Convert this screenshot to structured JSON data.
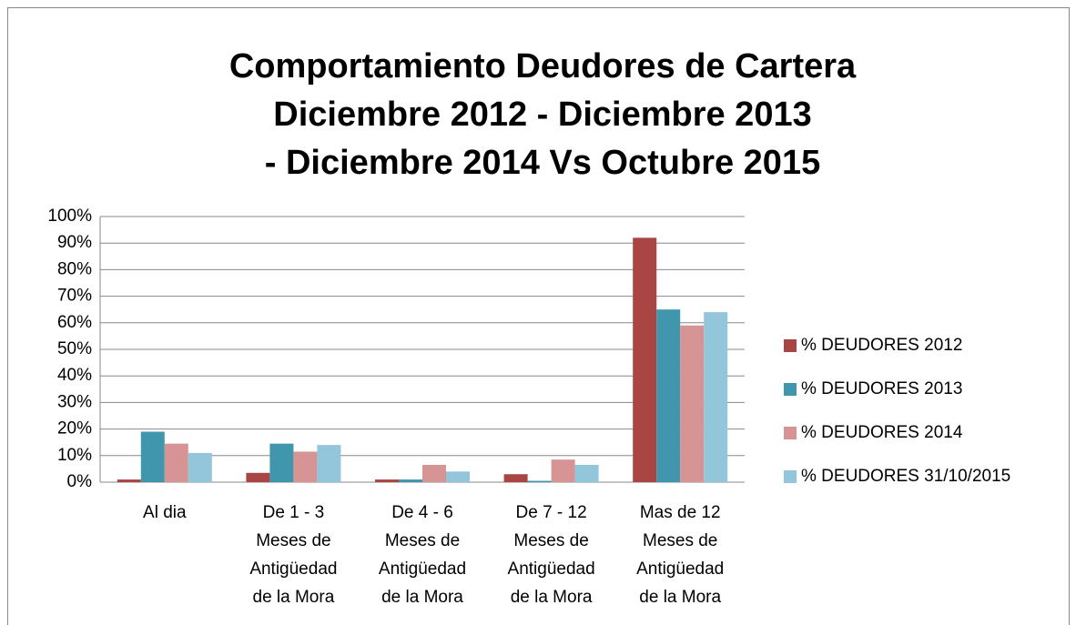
{
  "chart_data": {
    "type": "bar",
    "title": [
      "Comportamiento Deudores de Cartera",
      "Diciembre 2012 - Diciembre 2013",
      "- Diciembre 2014 Vs Octubre 2015"
    ],
    "categories": [
      [
        "Al dia"
      ],
      [
        "De 1 - 3",
        "Meses de",
        "Antigüedad",
        "de la Mora"
      ],
      [
        "De 4 - 6",
        "Meses de",
        "Antigüedad",
        "de la Mora"
      ],
      [
        "De 7 - 12",
        "Meses de",
        "Antigüedad",
        "de la Mora"
      ],
      [
        "Mas de 12",
        "Meses de",
        "Antigüedad",
        "de la Mora"
      ]
    ],
    "series": [
      {
        "name": "% DEUDORES 2012",
        "color": "#a94543",
        "values": [
          1,
          3.5,
          1,
          3,
          92
        ]
      },
      {
        "name": "% DEUDORES 2013",
        "color": "#3f96ad",
        "values": [
          19,
          14.5,
          1,
          0.5,
          65
        ]
      },
      {
        "name": "% DEUDORES 2014",
        "color": "#d69594",
        "values": [
          14.5,
          11.5,
          6.5,
          8.5,
          59
        ]
      },
      {
        "name": "% DEUDORES 31/10/2015",
        "color": "#93c6da",
        "values": [
          11,
          14,
          4,
          6.5,
          64
        ]
      }
    ],
    "ylim": [
      0,
      100
    ],
    "yticks": [
      {
        "value": 0,
        "label": "0%"
      },
      {
        "value": 10,
        "label": "10%"
      },
      {
        "value": 20,
        "label": "20%"
      },
      {
        "value": 30,
        "label": "30%"
      },
      {
        "value": 40,
        "label": "40%"
      },
      {
        "value": 50,
        "label": "50%"
      },
      {
        "value": 60,
        "label": "60%"
      },
      {
        "value": 70,
        "label": "70%"
      },
      {
        "value": 80,
        "label": "80%"
      },
      {
        "value": 90,
        "label": "90%"
      },
      {
        "value": 100,
        "label": "100%"
      }
    ],
    "grid": true,
    "legend": "right"
  }
}
